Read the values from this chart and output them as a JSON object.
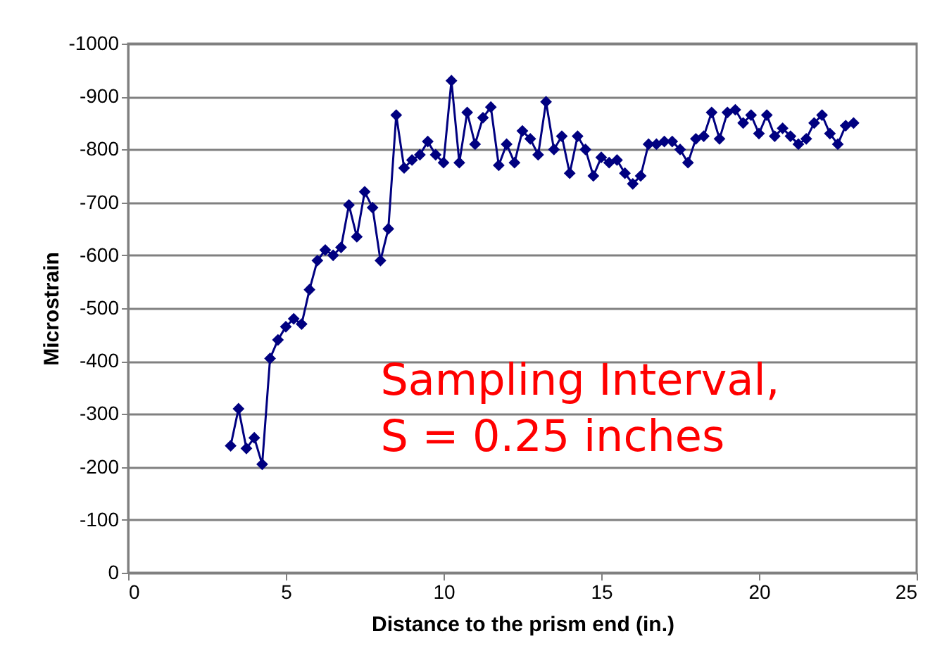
{
  "chart_data": {
    "type": "line",
    "xlabel": "Distance to the prism end (in.)",
    "ylabel": "Microstrain",
    "x": [
      3.25,
      3.5,
      3.75,
      4.0,
      4.25,
      4.5,
      4.75,
      5.0,
      5.25,
      5.5,
      5.75,
      6.0,
      6.25,
      6.5,
      6.75,
      7.0,
      7.25,
      7.5,
      7.75,
      8.0,
      8.25,
      8.5,
      8.75,
      9.0,
      9.25,
      9.5,
      9.75,
      10.0,
      10.25,
      10.5,
      10.75,
      11.0,
      11.25,
      11.5,
      11.75,
      12.0,
      12.25,
      12.5,
      12.75,
      13.0,
      13.25,
      13.5,
      13.75,
      14.0,
      14.25,
      14.5,
      14.75,
      15.0,
      15.25,
      15.5,
      15.75,
      16.0,
      16.25,
      16.5,
      16.75,
      17.0,
      17.25,
      17.5,
      17.75,
      18.0,
      18.25,
      18.5,
      18.75,
      19.0,
      19.25,
      19.5,
      19.75,
      20.0,
      20.25,
      20.5,
      20.75,
      21.0,
      21.25,
      21.5,
      21.75,
      22.0,
      22.25,
      22.5,
      22.75,
      23.0
    ],
    "series": [
      {
        "color": "#000080",
        "values": [
          -240,
          -310,
          -235,
          -255,
          -205,
          -405,
          -440,
          -465,
          -480,
          -470,
          -535,
          -590,
          -610,
          -600,
          -615,
          -695,
          -635,
          -720,
          -690,
          -590,
          -650,
          -865,
          -765,
          -780,
          -790,
          -815,
          -790,
          -775,
          -930,
          -775,
          -870,
          -810,
          -860,
          -880,
          -770,
          -810,
          -775,
          -835,
          -820,
          -790,
          -890,
          -800,
          -825,
          -755,
          -825,
          -800,
          -750,
          -785,
          -775,
          -780,
          -755,
          -735,
          -750,
          -810,
          -810,
          -815,
          -815,
          -800,
          -775,
          -820,
          -825,
          -870,
          -820,
          -870,
          -875,
          -850,
          -865,
          -830,
          -865,
          -825,
          -840,
          -825,
          -810,
          -820,
          -850,
          -865,
          -830,
          -810,
          -845,
          -850
        ]
      }
    ],
    "xlim": [
      0,
      25
    ],
    "xticks": [
      0,
      5,
      10,
      15,
      20,
      25
    ],
    "ylim": [
      0,
      -1000
    ],
    "yticks": [
      0,
      -100,
      -200,
      -300,
      -400,
      -500,
      -600,
      -700,
      -800,
      -900,
      -1000
    ],
    "grid": "y",
    "marker": "diamond",
    "line_style": "solid",
    "legend": false,
    "annotations": [
      "Sampling Interval,\nS = 0.25 inches"
    ]
  }
}
